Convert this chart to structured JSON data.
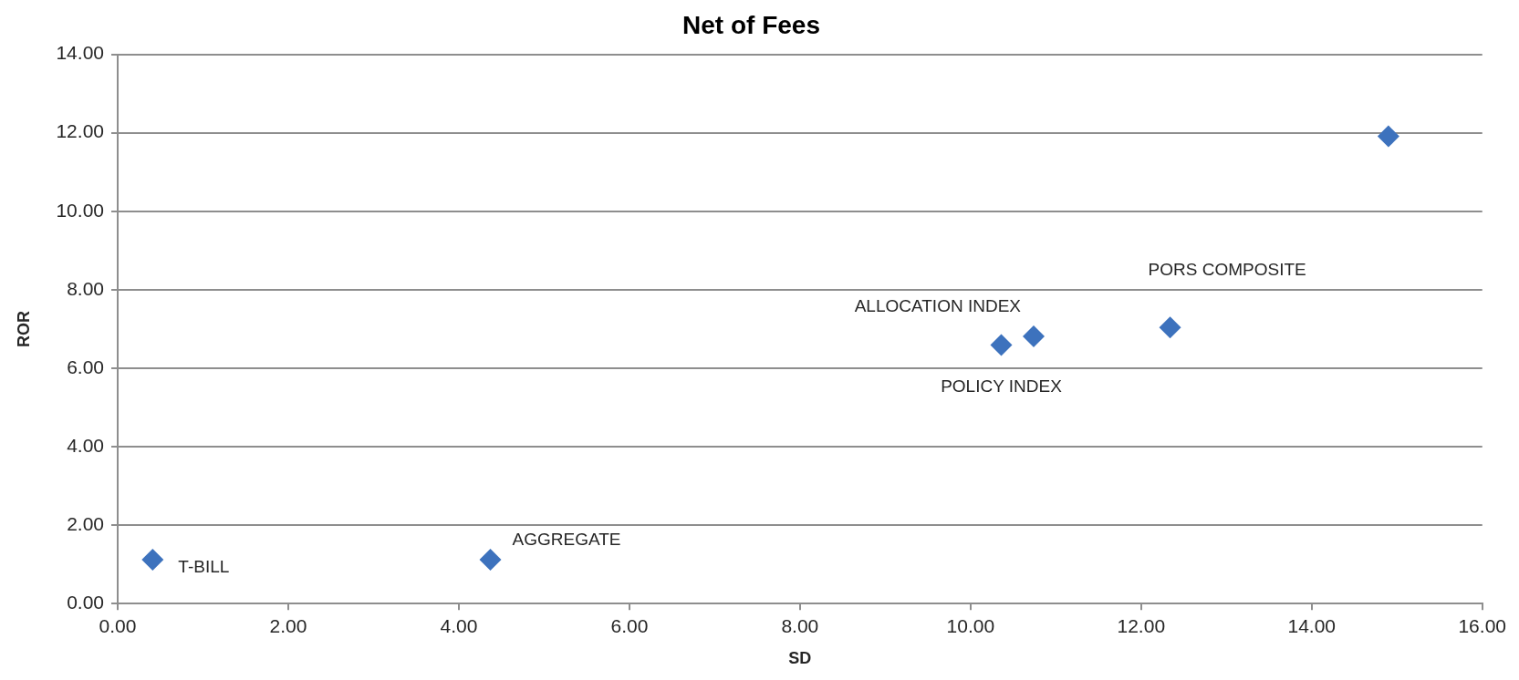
{
  "chart_data": {
    "type": "scatter",
    "title": "Net of Fees",
    "xlabel": "SD",
    "ylabel": "ROR",
    "x": [
      0.41,
      4.37,
      10.36,
      10.74,
      12.34,
      14.9
    ],
    "values": [
      1.12,
      1.12,
      6.59,
      6.81,
      7.04,
      11.91
    ],
    "color": "#3d72bd",
    "marker": "diamond",
    "xlim": [
      0,
      16
    ],
    "xticks": [
      {
        "value": 0,
        "label": "0.00"
      },
      {
        "value": 2,
        "label": "2.00"
      },
      {
        "value": 4,
        "label": "4.00"
      },
      {
        "value": 6,
        "label": "6.00"
      },
      {
        "value": 8,
        "label": "8.00"
      },
      {
        "value": 10,
        "label": "10.00"
      },
      {
        "value": 12,
        "label": "12.00"
      },
      {
        "value": 14,
        "label": "14.00"
      },
      {
        "value": 16,
        "label": "16.00"
      }
    ],
    "ylim": [
      0,
      14
    ],
    "yticks": [
      {
        "value": 0,
        "label": "0.00"
      },
      {
        "value": 2,
        "label": "2.00"
      },
      {
        "value": 4,
        "label": "4.00"
      },
      {
        "value": 6,
        "label": "6.00"
      },
      {
        "value": 8,
        "label": "8.00"
      },
      {
        "value": 10,
        "label": "10.00"
      },
      {
        "value": 12,
        "label": "12.00"
      },
      {
        "value": 14,
        "label": "14.00"
      }
    ],
    "grid": "y",
    "annotations": [
      {
        "text": "T-BILL",
        "x": 0.41,
        "y": 1.12
      },
      {
        "text": "AGGREGATE",
        "x": 4.37,
        "y": 1.12
      },
      {
        "text": "POLICY INDEX",
        "x": 10.36,
        "y": 6.59
      },
      {
        "text": "ALLOCATION INDEX",
        "x": 10.74,
        "y": 6.81
      },
      {
        "text": "PORS COMPOSITE",
        "x": 12.34,
        "y": 7.04
      }
    ]
  }
}
